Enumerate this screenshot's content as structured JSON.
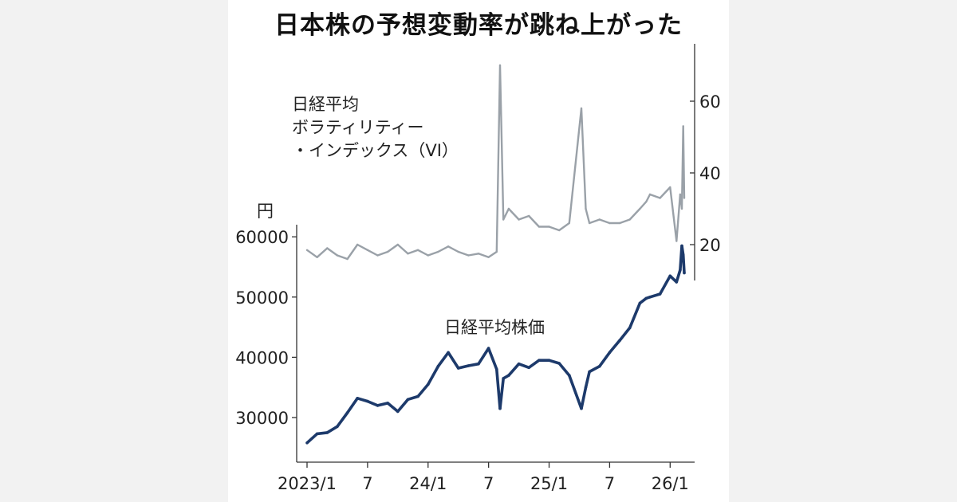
{
  "title": "日本株の予想変動率が跳ね上がった",
  "colors": {
    "price": "#1d3a6b",
    "vi": "#9aa1a8",
    "axis": "#333333"
  },
  "chart_data": {
    "type": "line",
    "title": "日本株の予想変動率が跳ね上がった",
    "x_ticks": [
      "2023/1",
      "7",
      "24/1",
      "7",
      "25/1",
      "7",
      "26/1"
    ],
    "left_axis": {
      "unit": "円",
      "ticks": [
        "60000",
        "50000",
        "40000",
        "30000"
      ],
      "ylim": [
        25000,
        62000
      ]
    },
    "right_axis": {
      "ticks": [
        "60",
        "40",
        "20"
      ],
      "ylim": [
        10,
        73
      ]
    },
    "series": [
      {
        "name_lines": [
          "日経平均",
          "ボラティリティー",
          "・インデックス（VI）"
        ],
        "axis": "right",
        "x": [
          "2023-01",
          "2023-02",
          "2023-03",
          "2023-04",
          "2023-05",
          "2023-06",
          "2023-07",
          "2023-08",
          "2023-09",
          "2023-10",
          "2023-11",
          "2023-12",
          "2024-01",
          "2024-02",
          "2024-03",
          "2024-04",
          "2024-05",
          "2024-06",
          "2024-07",
          "2024-07-25",
          "2024-08-05",
          "2024-08-15",
          "2024-09",
          "2024-10",
          "2024-11",
          "2024-12",
          "2025-01",
          "2025-02",
          "2025-03",
          "2025-04-07",
          "2025-04-20",
          "2025-05",
          "2025-06",
          "2025-07",
          "2025-08",
          "2025-09",
          "2025-10",
          "2025-10-20",
          "2025-11",
          "2025-12",
          "2026-01",
          "2026-01-20",
          "2026-02-01",
          "2026-02-06",
          "2026-02-10",
          "2026-02-13"
        ],
        "y": [
          18.5,
          16.5,
          19,
          17,
          16,
          20,
          18.5,
          17,
          18,
          20,
          17.5,
          18.5,
          17,
          18,
          19.5,
          18,
          17,
          17.5,
          16.5,
          18,
          70,
          27,
          30,
          27,
          28,
          25,
          25,
          24,
          26,
          58,
          30,
          26,
          27,
          26,
          26,
          27,
          30,
          32,
          34,
          33,
          36,
          21,
          34,
          30,
          53,
          33
        ]
      },
      {
        "name": "日経平均株価",
        "axis": "left",
        "x": [
          "2023-01",
          "2023-02",
          "2023-03",
          "2023-04",
          "2023-05",
          "2023-06",
          "2023-07",
          "2023-08",
          "2023-09",
          "2023-10",
          "2023-11",
          "2023-12",
          "2024-01",
          "2024-02",
          "2024-03",
          "2024-04",
          "2024-05",
          "2024-06",
          "2024-07",
          "2024-07-25",
          "2024-08-05",
          "2024-08-15",
          "2024-09",
          "2024-10",
          "2024-11",
          "2024-12",
          "2025-01",
          "2025-02",
          "2025-03",
          "2025-04-07",
          "2025-04-20",
          "2025-05",
          "2025-06",
          "2025-07",
          "2025-08",
          "2025-09",
          "2025-10",
          "2025-10-20",
          "2025-11",
          "2025-12",
          "2026-01",
          "2026-01-20",
          "2026-02-01",
          "2026-02-06",
          "2026-02-10",
          "2026-02-13"
        ],
        "y": [
          25800,
          27300,
          27500,
          28500,
          30800,
          33200,
          32700,
          32000,
          32400,
          31000,
          33000,
          33500,
          35500,
          38500,
          40800,
          38200,
          38600,
          38900,
          41500,
          38000,
          31500,
          36500,
          37000,
          38900,
          38300,
          39500,
          39500,
          39000,
          37000,
          31500,
          35000,
          37600,
          38500,
          40800,
          42800,
          44900,
          49000,
          49800,
          50000,
          50500,
          53500,
          52500,
          54500,
          58500,
          57000,
          54000
        ]
      }
    ],
    "annotations": [
      "日経平均株価"
    ]
  }
}
